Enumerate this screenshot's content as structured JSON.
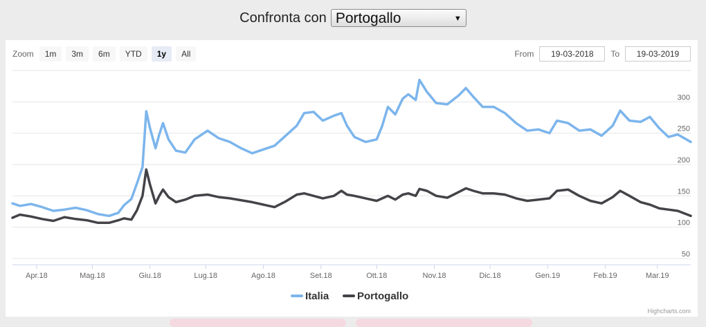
{
  "compare": {
    "label": "Confronta con",
    "selected": "Portogallo"
  },
  "zoom": {
    "label": "Zoom",
    "buttons": [
      "1m",
      "3m",
      "6m",
      "YTD",
      "1y",
      "All"
    ],
    "active": "1y"
  },
  "range": {
    "from_label": "From",
    "from_value": "19-03-2018",
    "to_label": "To",
    "to_value": "19-03-2019"
  },
  "credits": "Highcharts.com",
  "chart_data": {
    "type": "line",
    "x_range": [
      "2018-03-19",
      "2019-03-19"
    ],
    "x_ticks": [
      {
        "label": "Apr.18",
        "date": "2018-04-01"
      },
      {
        "label": "Mag.18",
        "date": "2018-05-01"
      },
      {
        "label": "Giu.18",
        "date": "2018-06-01"
      },
      {
        "label": "Lug.18",
        "date": "2018-07-01"
      },
      {
        "label": "Ago.18",
        "date": "2018-08-01"
      },
      {
        "label": "Set.18",
        "date": "2018-09-01"
      },
      {
        "label": "Ott.18",
        "date": "2018-10-01"
      },
      {
        "label": "Nov.18",
        "date": "2018-11-01"
      },
      {
        "label": "Dic.18",
        "date": "2018-12-01"
      },
      {
        "label": "Gen.19",
        "date": "2019-01-01"
      },
      {
        "label": "Feb.19",
        "date": "2019-02-01"
      },
      {
        "label": "Mar.19",
        "date": "2019-03-01"
      }
    ],
    "y_ticks": [
      50,
      100,
      150,
      200,
      250,
      300
    ],
    "ylim": [
      40,
      350
    ],
    "grid": true,
    "legend_position": "bottom-center",
    "series": [
      {
        "name": "Italia",
        "color": "#7cb5ec",
        "points": [
          [
            "2018-03-19",
            138
          ],
          [
            "2018-03-23",
            134
          ],
          [
            "2018-03-29",
            137
          ],
          [
            "2018-04-04",
            132
          ],
          [
            "2018-04-10",
            126
          ],
          [
            "2018-04-16",
            128
          ],
          [
            "2018-04-22",
            131
          ],
          [
            "2018-04-28",
            127
          ],
          [
            "2018-05-04",
            121
          ],
          [
            "2018-05-10",
            118
          ],
          [
            "2018-05-15",
            123
          ],
          [
            "2018-05-18",
            135
          ],
          [
            "2018-05-22",
            145
          ],
          [
            "2018-05-25",
            170
          ],
          [
            "2018-05-28",
            196
          ],
          [
            "2018-05-30",
            285
          ],
          [
            "2018-06-01",
            258
          ],
          [
            "2018-06-04",
            226
          ],
          [
            "2018-06-06",
            248
          ],
          [
            "2018-06-08",
            266
          ],
          [
            "2018-06-11",
            240
          ],
          [
            "2018-06-15",
            222
          ],
          [
            "2018-06-20",
            219
          ],
          [
            "2018-06-25",
            240
          ],
          [
            "2018-07-02",
            254
          ],
          [
            "2018-07-08",
            242
          ],
          [
            "2018-07-14",
            236
          ],
          [
            "2018-07-20",
            226
          ],
          [
            "2018-07-26",
            218
          ],
          [
            "2018-08-01",
            224
          ],
          [
            "2018-08-07",
            230
          ],
          [
            "2018-08-13",
            246
          ],
          [
            "2018-08-19",
            262
          ],
          [
            "2018-08-23",
            282
          ],
          [
            "2018-08-28",
            284
          ],
          [
            "2018-09-02",
            270
          ],
          [
            "2018-09-08",
            278
          ],
          [
            "2018-09-12",
            282
          ],
          [
            "2018-09-15",
            262
          ],
          [
            "2018-09-19",
            244
          ],
          [
            "2018-09-25",
            236
          ],
          [
            "2018-10-01",
            240
          ],
          [
            "2018-10-04",
            262
          ],
          [
            "2018-10-07",
            292
          ],
          [
            "2018-10-11",
            280
          ],
          [
            "2018-10-15",
            305
          ],
          [
            "2018-10-18",
            312
          ],
          [
            "2018-10-22",
            303
          ],
          [
            "2018-10-24",
            335
          ],
          [
            "2018-10-28",
            316
          ],
          [
            "2018-11-02",
            298
          ],
          [
            "2018-11-08",
            296
          ],
          [
            "2018-11-14",
            310
          ],
          [
            "2018-11-18",
            322
          ],
          [
            "2018-11-22",
            308
          ],
          [
            "2018-11-27",
            292
          ],
          [
            "2018-12-03",
            292
          ],
          [
            "2018-12-09",
            282
          ],
          [
            "2018-12-15",
            266
          ],
          [
            "2018-12-21",
            254
          ],
          [
            "2018-12-27",
            256
          ],
          [
            "2019-01-02",
            250
          ],
          [
            "2019-01-06",
            270
          ],
          [
            "2019-01-12",
            266
          ],
          [
            "2019-01-18",
            254
          ],
          [
            "2019-01-24",
            256
          ],
          [
            "2019-01-30",
            246
          ],
          [
            "2019-02-05",
            262
          ],
          [
            "2019-02-09",
            286
          ],
          [
            "2019-02-14",
            270
          ],
          [
            "2019-02-20",
            268
          ],
          [
            "2019-02-25",
            276
          ],
          [
            "2019-03-02",
            258
          ],
          [
            "2019-03-07",
            244
          ],
          [
            "2019-03-12",
            248
          ],
          [
            "2019-03-19",
            236
          ]
        ]
      },
      {
        "name": "Portogallo",
        "color": "#434348",
        "points": [
          [
            "2018-03-19",
            115
          ],
          [
            "2018-03-23",
            120
          ],
          [
            "2018-03-29",
            117
          ],
          [
            "2018-04-04",
            113
          ],
          [
            "2018-04-10",
            110
          ],
          [
            "2018-04-16",
            116
          ],
          [
            "2018-04-22",
            113
          ],
          [
            "2018-04-28",
            111
          ],
          [
            "2018-05-04",
            107
          ],
          [
            "2018-05-10",
            107
          ],
          [
            "2018-05-15",
            111
          ],
          [
            "2018-05-18",
            114
          ],
          [
            "2018-05-22",
            112
          ],
          [
            "2018-05-25",
            127
          ],
          [
            "2018-05-28",
            150
          ],
          [
            "2018-05-30",
            192
          ],
          [
            "2018-06-01",
            168
          ],
          [
            "2018-06-04",
            138
          ],
          [
            "2018-06-06",
            150
          ],
          [
            "2018-06-08",
            160
          ],
          [
            "2018-06-11",
            148
          ],
          [
            "2018-06-15",
            140
          ],
          [
            "2018-06-20",
            144
          ],
          [
            "2018-06-25",
            150
          ],
          [
            "2018-07-02",
            152
          ],
          [
            "2018-07-08",
            148
          ],
          [
            "2018-07-14",
            146
          ],
          [
            "2018-07-20",
            143
          ],
          [
            "2018-07-26",
            140
          ],
          [
            "2018-08-01",
            136
          ],
          [
            "2018-08-07",
            132
          ],
          [
            "2018-08-13",
            141
          ],
          [
            "2018-08-19",
            152
          ],
          [
            "2018-08-23",
            154
          ],
          [
            "2018-08-28",
            150
          ],
          [
            "2018-09-02",
            146
          ],
          [
            "2018-09-08",
            150
          ],
          [
            "2018-09-12",
            158
          ],
          [
            "2018-09-15",
            152
          ],
          [
            "2018-09-19",
            150
          ],
          [
            "2018-09-25",
            146
          ],
          [
            "2018-10-01",
            142
          ],
          [
            "2018-10-04",
            146
          ],
          [
            "2018-10-07",
            150
          ],
          [
            "2018-10-11",
            144
          ],
          [
            "2018-10-15",
            152
          ],
          [
            "2018-10-18",
            154
          ],
          [
            "2018-10-22",
            150
          ],
          [
            "2018-10-24",
            161
          ],
          [
            "2018-10-28",
            158
          ],
          [
            "2018-11-02",
            150
          ],
          [
            "2018-11-08",
            147
          ],
          [
            "2018-11-14",
            156
          ],
          [
            "2018-11-18",
            162
          ],
          [
            "2018-11-22",
            158
          ],
          [
            "2018-11-27",
            154
          ],
          [
            "2018-12-03",
            154
          ],
          [
            "2018-12-09",
            152
          ],
          [
            "2018-12-15",
            146
          ],
          [
            "2018-12-21",
            142
          ],
          [
            "2018-12-27",
            144
          ],
          [
            "2019-01-02",
            146
          ],
          [
            "2019-01-06",
            158
          ],
          [
            "2019-01-12",
            160
          ],
          [
            "2019-01-18",
            150
          ],
          [
            "2019-01-24",
            142
          ],
          [
            "2019-01-30",
            138
          ],
          [
            "2019-02-05",
            148
          ],
          [
            "2019-02-09",
            158
          ],
          [
            "2019-02-14",
            150
          ],
          [
            "2019-02-20",
            140
          ],
          [
            "2019-02-25",
            136
          ],
          [
            "2019-03-02",
            130
          ],
          [
            "2019-03-07",
            128
          ],
          [
            "2019-03-12",
            126
          ],
          [
            "2019-03-19",
            118
          ]
        ]
      }
    ]
  }
}
